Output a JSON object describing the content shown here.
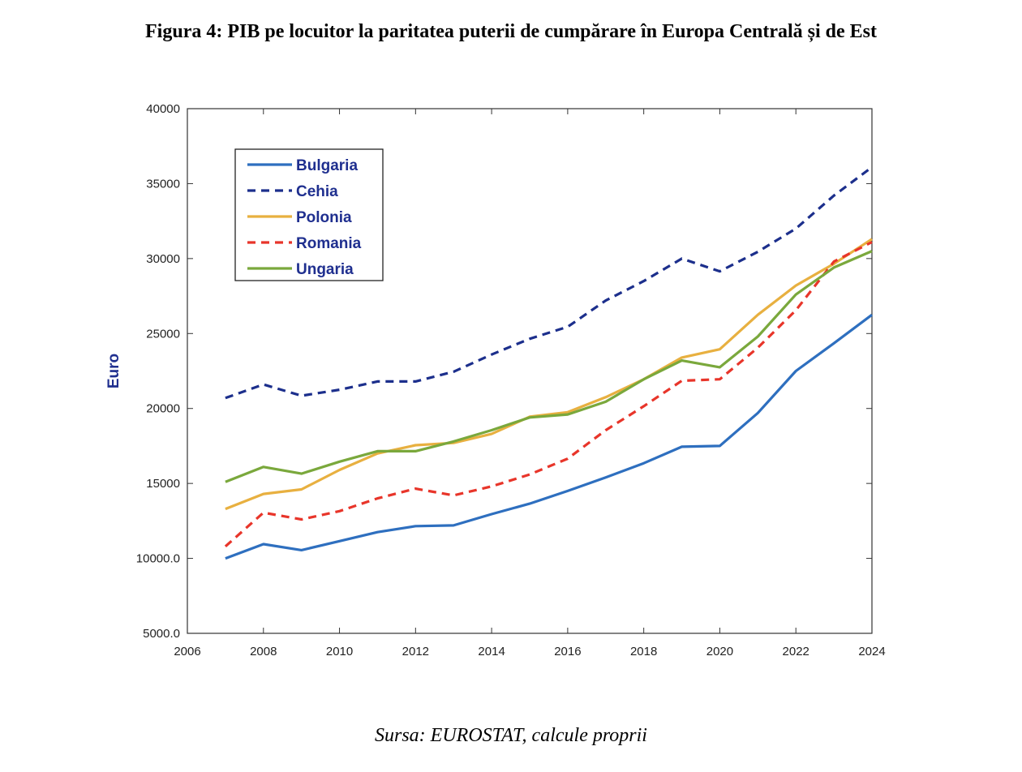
{
  "figure": {
    "title": "Figura 4: PIB pe locuitor la paritatea puterii de cumpărare în Europa Centrală și de Est",
    "source": "Sursa: EUROSTAT, calcule proprii"
  },
  "chart_data": {
    "type": "line",
    "title": "",
    "xlabel": "",
    "ylabel": "Euro",
    "xlim": [
      2006,
      2024
    ],
    "ylim": [
      5000,
      40000
    ],
    "xticks": [
      2006,
      2008,
      2010,
      2012,
      2014,
      2016,
      2018,
      2020,
      2022,
      2024
    ],
    "xtick_labels": [
      "2006",
      "2008",
      "2010",
      "2012",
      "2014",
      "2016",
      "2018",
      "2020",
      "2022",
      "2024"
    ],
    "yticks": [
      5000,
      10000,
      15000,
      20000,
      25000,
      30000,
      35000,
      40000
    ],
    "ytick_labels": [
      "5000.0",
      "10000.0",
      "15000",
      "20000",
      "25000",
      "30000",
      "35000",
      "40000"
    ],
    "grid": false,
    "legend_position": "top-left",
    "x": [
      2007,
      2008,
      2009,
      2010,
      2011,
      2012,
      2013,
      2014,
      2015,
      2016,
      2017,
      2018,
      2019,
      2020,
      2021,
      2022,
      2023,
      2024
    ],
    "series": [
      {
        "name": "Bulgaria",
        "color": "#2e6fbf",
        "dash": "solid",
        "values": [
          10000,
          10950,
          10550,
          11150,
          11750,
          12150,
          12200,
          12950,
          13650,
          14500,
          15400,
          16350,
          17450,
          17500,
          19700,
          22500,
          24350,
          26250
        ]
      },
      {
        "name": "Cehia",
        "color": "#1c2f8c",
        "dash": "dashed",
        "values": [
          20700,
          21600,
          20850,
          21250,
          21800,
          21800,
          22450,
          23600,
          24650,
          25450,
          27200,
          28500,
          30000,
          29150,
          30450,
          32000,
          34200,
          36100
        ]
      },
      {
        "name": "Polonia",
        "color": "#e8b040",
        "dash": "solid",
        "values": [
          13300,
          14300,
          14600,
          15900,
          17000,
          17550,
          17700,
          18300,
          19450,
          19750,
          20750,
          21950,
          23400,
          23950,
          26250,
          28200,
          29650,
          31300
        ]
      },
      {
        "name": "Romania",
        "color": "#e8352a",
        "dash": "dashed",
        "values": [
          10800,
          13050,
          12600,
          13150,
          14000,
          14650,
          14200,
          14800,
          15600,
          16650,
          18550,
          20150,
          21850,
          21950,
          24050,
          26550,
          29800,
          31100
        ]
      },
      {
        "name": "Ungaria",
        "color": "#7aa83c",
        "dash": "solid",
        "values": [
          15100,
          16100,
          15650,
          16450,
          17150,
          17150,
          17800,
          18550,
          19400,
          19600,
          20450,
          21950,
          23200,
          22750,
          24800,
          27600,
          29400,
          30500
        ]
      }
    ]
  }
}
